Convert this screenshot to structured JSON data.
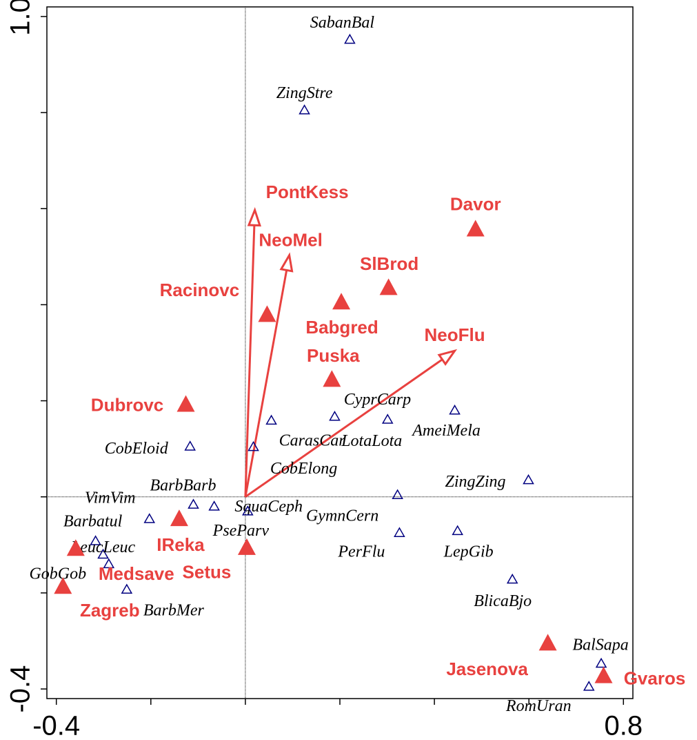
{
  "chart_data": {
    "type": "biplot",
    "xlim": [
      -0.42,
      0.82
    ],
    "ylim": [
      -0.42,
      1.02
    ],
    "xticks": [
      -0.4,
      {
        "value": -0.2,
        "label": null
      },
      {
        "value": 0,
        "label": null
      },
      {
        "value": 0.2,
        "label": null
      },
      {
        "value": 0.4,
        "label": null
      },
      {
        "value": 0.6,
        "label": null
      },
      0.8
    ],
    "yticks": [
      {
        "value": 1.0,
        "label": "1.0"
      },
      {
        "value": 0.8,
        "label": null
      },
      {
        "value": 0.6,
        "label": null
      },
      {
        "value": 0.4,
        "label": null
      },
      {
        "value": 0.2,
        "label": null
      },
      {
        "value": 0,
        "label": null
      },
      {
        "value": -0.2,
        "label": null
      },
      -0.4
    ],
    "species": {
      "color": "#000080",
      "labels": [
        "SabanBal",
        "ZingStre",
        "CarasCar",
        "CyprCarp",
        "LotaLota",
        "AmeiMela",
        "CobEloid",
        "CobElong",
        "ZingZing",
        "GymnCern",
        "BarbBarb",
        "SquaCeph",
        "PseParv",
        "VimVim",
        "Barbatul",
        "LeucLeuc",
        "GobGob",
        "PerFlu",
        "LepGib",
        "BlicaBjo",
        "BarbMer",
        "BalSapa",
        "RomUran"
      ],
      "x": [
        0.221,
        0.125,
        0.055,
        0.189,
        0.301,
        0.443,
        -0.117,
        0.017,
        0.599,
        0.322,
        -0.11,
        -0.066,
        0.005,
        -0.203,
        -0.317,
        -0.301,
        -0.289,
        0.326,
        0.449,
        0.565,
        -0.251,
        0.753,
        0.727
      ],
      "y": [
        0.952,
        0.805,
        0.159,
        0.167,
        0.161,
        0.18,
        0.105,
        0.104,
        0.035,
        0.004,
        -0.016,
        -0.02,
        -0.03,
        -0.046,
        -0.092,
        -0.12,
        -0.14,
        -0.075,
        -0.071,
        -0.172,
        -0.193,
        -0.347,
        -0.395
      ]
    },
    "sites": {
      "color": "#e8413f",
      "labels": [
        "Davor",
        "SlBrod",
        "Babgred",
        "Racinovc",
        "Puska",
        "Dubrovc",
        "IReka",
        "Setus",
        "Medsave",
        "Zagreb",
        "Jasenova",
        "Gvaros"
      ],
      "x": [
        0.487,
        0.303,
        0.203,
        0.046,
        0.183,
        -0.126,
        -0.14,
        0.003,
        -0.359,
        -0.386,
        0.64,
        0.758
      ],
      "y": [
        0.558,
        0.436,
        0.406,
        0.38,
        0.245,
        0.193,
        -0.045,
        -0.105,
        -0.107,
        -0.186,
        -0.304,
        -0.372
      ]
    },
    "arrows": {
      "color": "#e8413f",
      "labels": [
        "PontKess",
        "NeoMel",
        "NeoFlu"
      ],
      "x": [
        0.02,
        0.093,
        0.443
      ],
      "y": [
        0.597,
        0.503,
        0.304
      ]
    }
  }
}
